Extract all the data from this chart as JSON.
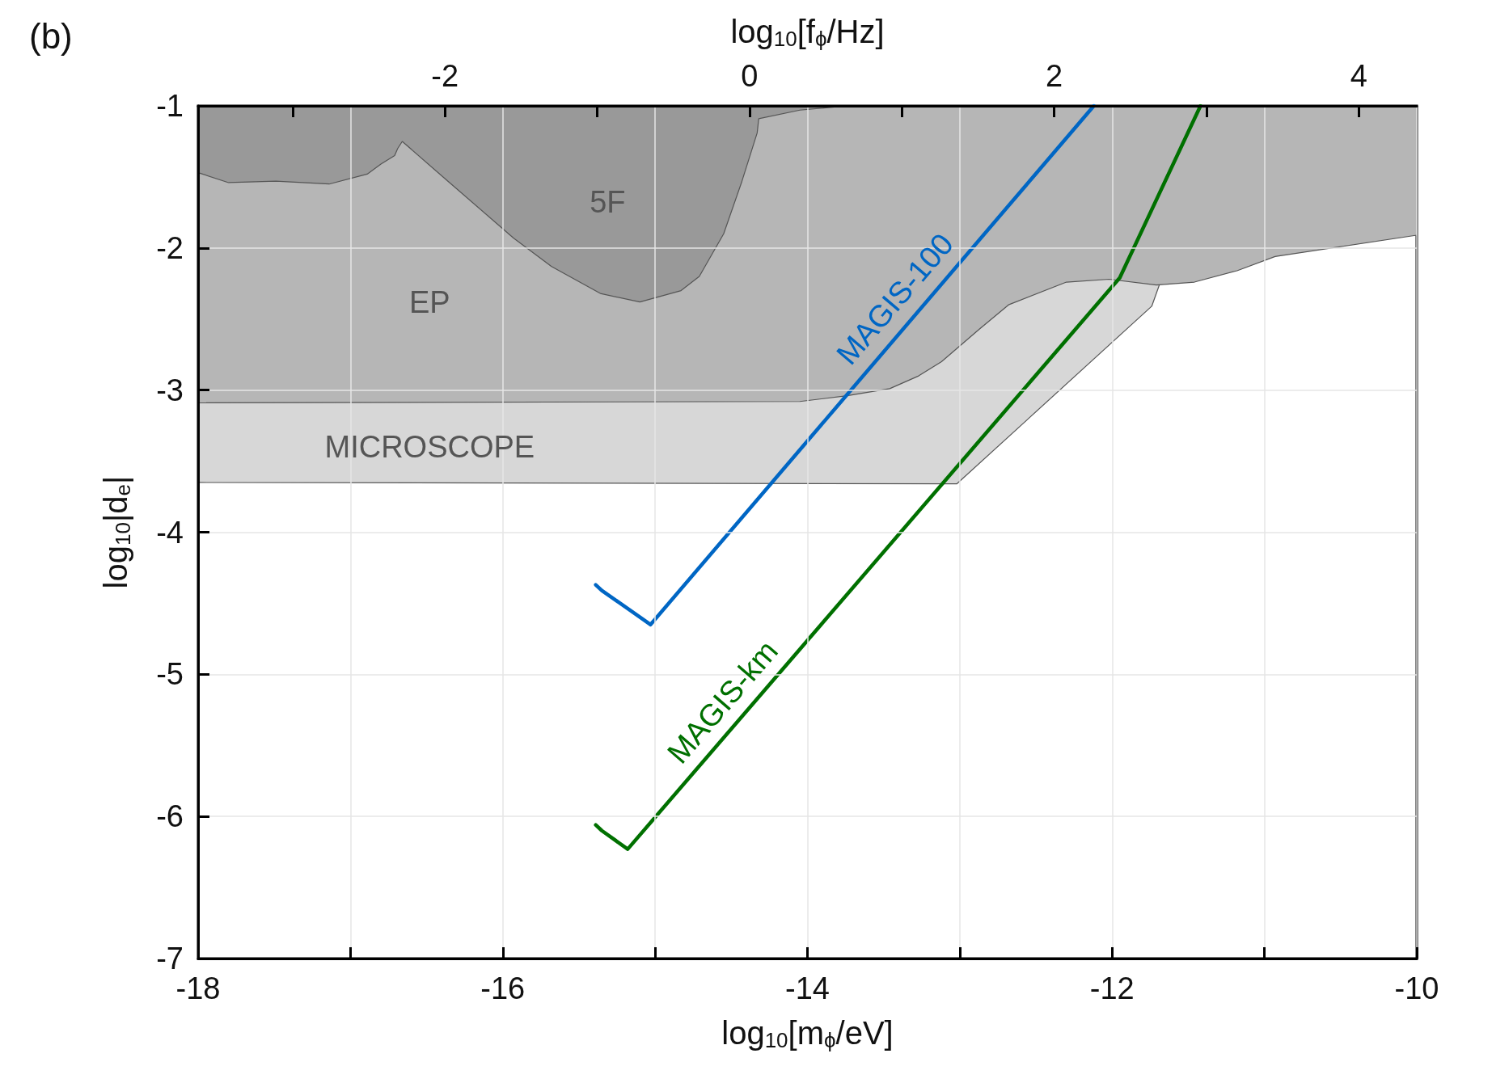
{
  "chart_data": {
    "type": "line",
    "annotations": [
      "(b)"
    ],
    "xlabel": "log$_{10}$[m$_{ϕ}$/eV]",
    "x2label": "log$_{10}$[f$_{ϕ}$/Hz]",
    "ylabel": "log$_{10}$|d$_{e}$|",
    "xlim": [
      -18,
      -10
    ],
    "xticks": [
      -18,
      {
        "value": -17,
        "label": null
      },
      -16,
      {
        "value": -15,
        "label": null
      },
      -14,
      {
        "value": -13,
        "label": null
      },
      -12,
      {
        "value": -11,
        "label": null
      },
      -10
    ],
    "x2lim": [
      -3.62,
      4.38
    ],
    "x2ticks": [
      {
        "value": -3,
        "label": null
      },
      -2,
      {
        "value": -1,
        "label": null
      },
      0,
      {
        "value": 1,
        "label": null
      },
      2,
      {
        "value": 3,
        "label": null
      },
      4
    ],
    "ylim": [
      -7,
      -1
    ],
    "yticks": [
      -7,
      -6,
      -5,
      -4,
      -3,
      -2,
      -1
    ],
    "grid": true,
    "marker": "none",
    "series": [
      {
        "type": "area",
        "name": "MICROSCOPE",
        "color": "#d7d7d7",
        "x": [
          -18,
          -13.02,
          -11.74,
          -11.69
        ],
        "values": [
          -3.65,
          -3.66,
          -2.41,
          -2.26
        ]
      },
      {
        "type": "area",
        "name": "EP",
        "color": "#b6b6b6",
        "x": [
          -18,
          -14.05,
          -13.74,
          -13.46,
          -13.27,
          -13.12,
          -12.87,
          -12.68,
          -12.3,
          -12.02,
          -11.71,
          -11.46,
          -11.18,
          -10.93,
          -10
        ],
        "values": [
          -3.09,
          -3.08,
          -3.04,
          -2.99,
          -2.9,
          -2.8,
          -2.57,
          -2.4,
          -2.24,
          -2.22,
          -2.26,
          -2.24,
          -2.16,
          -2.06,
          -1.91
        ]
      },
      {
        "type": "area",
        "name": "5F",
        "color": "#999999",
        "x": [
          -18,
          -17.8,
          -17.49,
          -17.14,
          -16.89,
          -16.8,
          -16.71,
          -16.69,
          -16.66,
          -16.36,
          -15.93,
          -15.68,
          -15.36,
          -15.1,
          -14.83,
          -14.71,
          -14.55,
          -14.43,
          -14.33,
          -14.32,
          -14.05,
          -13.74
        ],
        "values": [
          -1.47,
          -1.54,
          -1.53,
          -1.55,
          -1.48,
          -1.41,
          -1.35,
          -1.3,
          -1.25,
          -1.53,
          -1.93,
          -2.13,
          -2.32,
          -2.38,
          -2.3,
          -2.2,
          -1.9,
          -1.53,
          -1.19,
          -1.09,
          -1.03,
          -1.0
        ]
      },
      {
        "name": "MAGIS-100",
        "color": "#0066c4",
        "x": [
          -15.39,
          -15.35,
          -15.03,
          -12.12
        ],
        "values": [
          -4.37,
          -4.41,
          -4.65,
          -1.0
        ]
      },
      {
        "name": "MAGIS-km",
        "color": "#007000",
        "x": [
          -15.39,
          -15.35,
          -15.18,
          -11.95,
          -11.42
        ],
        "values": [
          -6.06,
          -6.1,
          -6.23,
          -2.21,
          -1.0
        ]
      }
    ]
  }
}
